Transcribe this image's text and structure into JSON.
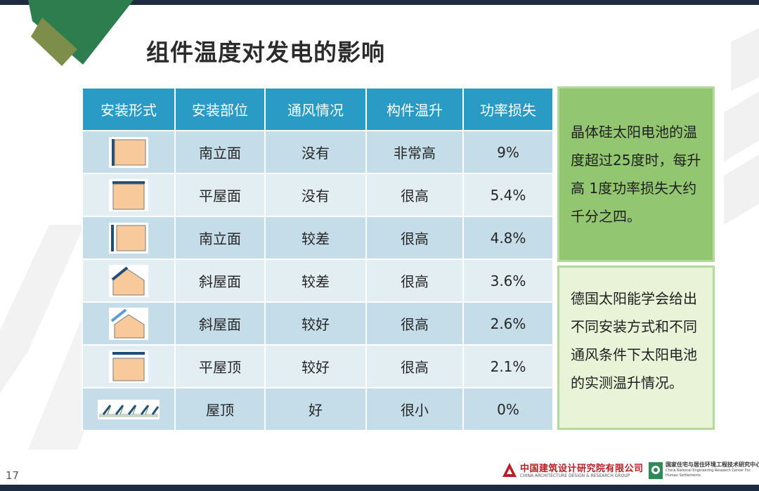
{
  "title": "组件温度对发电的影响",
  "table": {
    "headers": [
      "安装形式",
      "安装部位",
      "通风情况",
      "构件温升",
      "功率损失"
    ],
    "rows": [
      {
        "icon": "south-facade-no-gap-icon",
        "position": "南立面",
        "ventilation": "没有",
        "temp_rise": "非常高",
        "power_loss": "9%"
      },
      {
        "icon": "flat-roof-no-gap-icon",
        "position": "平屋面",
        "ventilation": "没有",
        "temp_rise": "很高",
        "power_loss": "5.4%"
      },
      {
        "icon": "south-facade-gap-icon",
        "position": "南立面",
        "ventilation": "较差",
        "temp_rise": "很高",
        "power_loss": "4.8%"
      },
      {
        "icon": "sloped-roof-no-gap-icon",
        "position": "斜屋面",
        "ventilation": "较差",
        "temp_rise": "很高",
        "power_loss": "3.6%"
      },
      {
        "icon": "sloped-roof-gap-icon",
        "position": "斜屋面",
        "ventilation": "较好",
        "temp_rise": "很高",
        "power_loss": "2.6%"
      },
      {
        "icon": "flat-roof-raised-icon",
        "position": "平屋顶",
        "ventilation": "较好",
        "temp_rise": "很高",
        "power_loss": "2.1%"
      },
      {
        "icon": "rooftop-rack-icon",
        "position": "屋顶",
        "ventilation": "好",
        "temp_rise": "很小",
        "power_loss": "0%"
      }
    ]
  },
  "note1": [
    "晶体硅太阳电池的温",
    "度超过25度时，每升",
    "高 1度功率损失大约",
    "千分之四。"
  ],
  "note2": [
    "德国太阳能学会给出",
    "不同安装方式和不同",
    "通风条件下太阳电池",
    "的实测温升情况。"
  ],
  "page_number": "17",
  "logo1": {
    "cn": "中国建筑设计研究院有限公司",
    "en": "CHINA ARCHITECTURE DESIGN & RESEARCH GROUP"
  },
  "logo2": {
    "cn": "国家住宅与居住环境工程技术研究中心",
    "en": "China National Engineering Research Center For Human Settlements"
  },
  "colors": {
    "header": "#2a9bc4",
    "row_odd": "#c5dde8",
    "row_even": "#e3eef3",
    "note1_bg": "#92c670",
    "note2_bg": "#e9f3d8",
    "accent_green": "#2e7d4f"
  }
}
